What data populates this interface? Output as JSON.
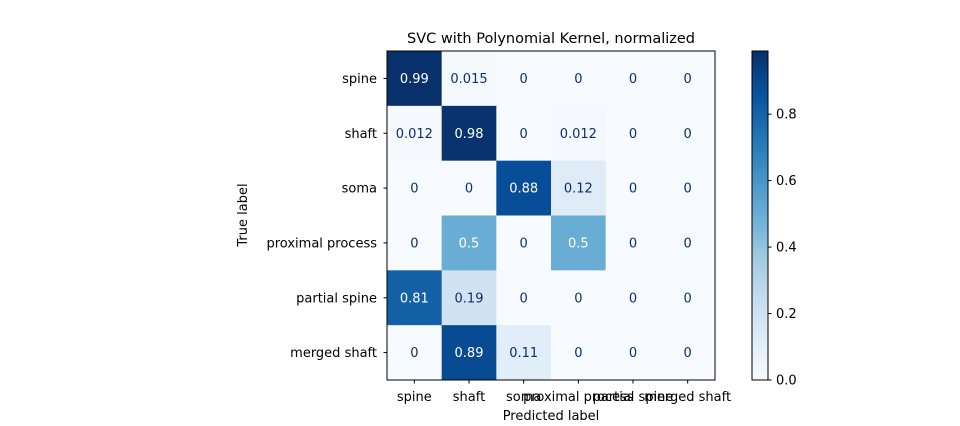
{
  "chart_data": {
    "type": "heatmap",
    "title": "SVC with Polynomial Kernel, normalized",
    "xlabel": "Predicted label",
    "ylabel": "True label",
    "x_categories": [
      "spine",
      "shaft",
      "soma",
      "proximal process",
      "partial spine",
      "merged shaft"
    ],
    "y_categories": [
      "spine",
      "shaft",
      "soma",
      "proximal process",
      "partial spine",
      "merged shaft"
    ],
    "values": [
      [
        0.99,
        0.015,
        0,
        0,
        0,
        0
      ],
      [
        0.012,
        0.98,
        0,
        0.012,
        0,
        0
      ],
      [
        0,
        0,
        0.88,
        0.12,
        0,
        0
      ],
      [
        0,
        0.5,
        0,
        0.5,
        0,
        0
      ],
      [
        0.81,
        0.19,
        0,
        0,
        0,
        0
      ],
      [
        0,
        0.89,
        0.11,
        0,
        0,
        0
      ]
    ],
    "cell_labels": [
      [
        "0.99",
        "0.015",
        "0",
        "0",
        "0",
        "0"
      ],
      [
        "0.012",
        "0.98",
        "0",
        "0.012",
        "0",
        "0"
      ],
      [
        "0",
        "0",
        "0.88",
        "0.12",
        "0",
        "0"
      ],
      [
        "0",
        "0.5",
        "0",
        "0.5",
        "0",
        "0"
      ],
      [
        "0.81",
        "0.19",
        "0",
        "0",
        "0",
        "0"
      ],
      [
        "0",
        "0.89",
        "0.11",
        "0",
        "0",
        "0"
      ]
    ],
    "colormap": "Blues",
    "colorbar": {
      "range": [
        0,
        0.99
      ],
      "ticks": [
        0.0,
        0.2,
        0.4,
        0.6,
        0.8
      ],
      "tick_labels": [
        "0.0",
        "0.2",
        "0.4",
        "0.6",
        "0.8"
      ]
    },
    "grid": false
  }
}
